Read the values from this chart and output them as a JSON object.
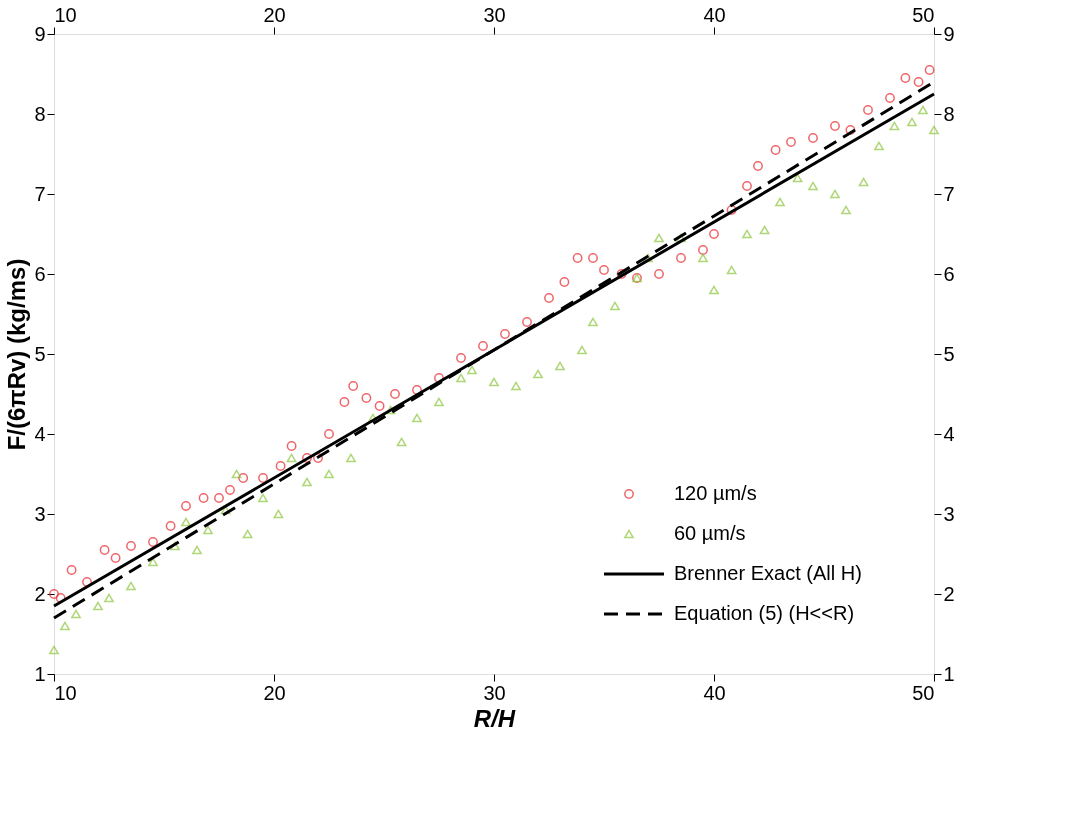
{
  "chart_data": {
    "type": "scatter",
    "xlabel": "R/H",
    "ylabel": "F/(6πRv) (kg/ms)",
    "xlim": [
      10,
      50
    ],
    "xticks": [
      10,
      20,
      30,
      40,
      50
    ],
    "ylim": [
      1,
      9
    ],
    "yticks": [
      1,
      2,
      3,
      4,
      5,
      6,
      7,
      8,
      9
    ],
    "x2lim": [
      10,
      50
    ],
    "x2ticks": [
      10,
      20,
      30,
      40,
      50
    ],
    "y2lim": [
      1,
      9
    ],
    "y2ticks": [
      1,
      2,
      3,
      4,
      5,
      6,
      7,
      8,
      9
    ],
    "grid": false,
    "legend": "bottom right",
    "series": [
      {
        "name": "120 µm/s",
        "marker": "circle",
        "color": "#e8262b",
        "x": [
          10,
          10.3,
          10.8,
          11.5,
          12.3,
          12.8,
          13.5,
          14.5,
          15.3,
          16,
          16.8,
          17.5,
          18,
          18.6,
          19.5,
          20.3,
          20.8,
          21.5,
          22,
          22.5,
          23.2,
          23.6,
          24.2,
          24.8,
          25.5,
          26.5,
          27.5,
          28.5,
          29.5,
          30.5,
          31.5,
          32.5,
          33.2,
          33.8,
          34.5,
          35,
          35.8,
          36.5,
          37.5,
          38.5,
          39.5,
          40,
          40.8,
          41.5,
          42,
          42.8,
          43.5,
          44.5,
          45.5,
          46.2,
          47,
          48,
          48.7,
          49.3,
          49.8
        ],
        "values": [
          2.0,
          1.95,
          2.3,
          2.15,
          2.55,
          2.45,
          2.6,
          2.65,
          2.85,
          3.1,
          3.2,
          3.2,
          3.3,
          3.45,
          3.45,
          3.6,
          3.85,
          3.7,
          3.7,
          4.0,
          4.4,
          4.6,
          4.45,
          4.35,
          4.5,
          4.55,
          4.7,
          4.95,
          5.1,
          5.25,
          5.4,
          5.7,
          5.9,
          6.2,
          6.2,
          6.05,
          6.0,
          5.95,
          6.0,
          6.2,
          6.3,
          6.5,
          6.8,
          7.1,
          7.35,
          7.55,
          7.65,
          7.7,
          7.85,
          7.8,
          8.05,
          8.2,
          8.45,
          8.4,
          8.55
        ]
      },
      {
        "name": "60 µm/s",
        "marker": "triangle",
        "color": "#8dc63f",
        "x": [
          10,
          10.5,
          11,
          12,
          12.5,
          13.5,
          14.5,
          15.5,
          16,
          16.5,
          17,
          17.8,
          18.3,
          18.8,
          19.5,
          20.2,
          20.8,
          21.5,
          22.5,
          23.5,
          24.5,
          25.3,
          25.8,
          26.5,
          27.5,
          28.5,
          29,
          30,
          31,
          32,
          33,
          34,
          34.5,
          35.5,
          36.5,
          37,
          37.5,
          38.5,
          39.5,
          40,
          40.8,
          41.5,
          42.3,
          43,
          43.8,
          44.5,
          45.5,
          46,
          46.8,
          47.5,
          48.2,
          49,
          49.5,
          50
        ],
        "values": [
          1.3,
          1.6,
          1.75,
          1.85,
          1.95,
          2.1,
          2.4,
          2.6,
          2.9,
          2.55,
          2.8,
          3.05,
          3.5,
          2.75,
          3.2,
          3.0,
          3.7,
          3.4,
          3.5,
          3.7,
          4.2,
          4.3,
          3.9,
          4.2,
          4.4,
          4.7,
          4.8,
          4.65,
          4.6,
          4.75,
          4.85,
          5.05,
          5.4,
          5.6,
          5.95,
          6.2,
          6.45,
          6.45,
          6.2,
          5.8,
          6.05,
          6.5,
          6.55,
          6.9,
          7.2,
          7.1,
          7.0,
          6.8,
          7.15,
          7.6,
          7.85,
          7.9,
          8.05,
          7.8
        ]
      },
      {
        "name": "Brenner Exact (All H)",
        "type": "line",
        "line_style": "solid",
        "color": "#000000",
        "x": [
          10,
          30,
          50
        ],
        "values": [
          1.85,
          5.05,
          8.25
        ]
      },
      {
        "name": "Equation (5) (H<<R)",
        "type": "line",
        "line_style": "dashed",
        "color": "#000000",
        "x": [
          10,
          30,
          50
        ],
        "values": [
          1.7,
          5.05,
          8.4
        ]
      }
    ]
  }
}
